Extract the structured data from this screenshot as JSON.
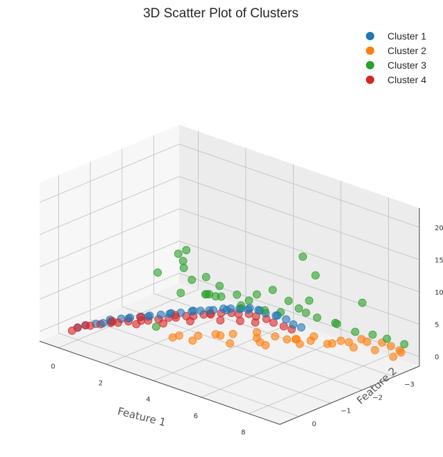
{
  "chart_data": {
    "type": "scatter",
    "projection": "3d",
    "title": "3D Scatter Plot of Clusters",
    "xlabel": "Feature 1",
    "ylabel": "Feature 2",
    "zlabel": "",
    "xlim": [
      -0.8,
      9.3
    ],
    "ylim": [
      -3.8,
      0.6
    ],
    "zlim": [
      -1.5,
      23
    ],
    "xticks": [
      0,
      2,
      4,
      6,
      8
    ],
    "yticks": [
      -3,
      -2,
      -1,
      0
    ],
    "zticks": [
      0,
      5,
      10,
      15,
      20
    ],
    "grid": true,
    "legend_position": "top-right",
    "series": [
      {
        "name": "Cluster 1",
        "color": "#1f77b4",
        "points": [
          [
            0,
            0,
            0.4
          ],
          [
            0.2,
            -0.1,
            0.8
          ],
          [
            0.5,
            -0.2,
            1.2
          ],
          [
            0.8,
            -0.2,
            1.7
          ],
          [
            1.0,
            -0.3,
            2.0
          ],
          [
            1.3,
            -0.4,
            2.6
          ],
          [
            1.6,
            -0.4,
            3.0
          ],
          [
            2.0,
            -0.5,
            3.6
          ],
          [
            2.3,
            -0.5,
            4.0
          ],
          [
            2.7,
            -0.6,
            4.6
          ],
          [
            3.0,
            -0.7,
            5.0
          ],
          [
            3.4,
            -0.7,
            5.6
          ],
          [
            3.8,
            -0.8,
            6.2
          ],
          [
            4.1,
            -0.8,
            6.6
          ],
          [
            4.5,
            -0.9,
            7.0
          ],
          [
            4.8,
            -1.0,
            7.4
          ],
          [
            5.1,
            -1.0,
            7.8
          ],
          [
            5.4,
            -1.1,
            8.0
          ],
          [
            5.7,
            -1.1,
            8.2
          ],
          [
            6.0,
            -1.2,
            8.3
          ],
          [
            6.3,
            -1.2,
            8.2
          ],
          [
            6.6,
            -1.3,
            8.0
          ],
          [
            6.9,
            -1.4,
            7.6
          ],
          [
            7.2,
            -1.4,
            7.2
          ],
          [
            5.6,
            -0.9,
            8.6
          ],
          [
            5.9,
            -1.0,
            8.9
          ],
          [
            6.2,
            -1.1,
            8.7
          ],
          [
            4.6,
            -0.7,
            7.5
          ],
          [
            3.2,
            -0.5,
            5.6
          ],
          [
            2.5,
            -0.4,
            4.6
          ],
          [
            1.8,
            -0.3,
            3.6
          ],
          [
            1.1,
            -0.2,
            2.6
          ],
          [
            6.8,
            -1.2,
            8.5
          ],
          [
            7.4,
            -1.5,
            6.8
          ],
          [
            5.2,
            -0.8,
            8.1
          ],
          [
            4.0,
            -0.6,
            6.8
          ]
        ]
      },
      {
        "name": "Cluster 2",
        "color": "#ff7f0e",
        "points": [
          [
            3.5,
            -1.0,
            0.8
          ],
          [
            4.0,
            -1.5,
            1.2
          ],
          [
            4.8,
            -1.2,
            1.6
          ],
          [
            5.5,
            -1.8,
            1.0
          ],
          [
            6.0,
            -2.5,
            0.4
          ],
          [
            6.5,
            -3.0,
            0.0
          ],
          [
            7.0,
            -3.3,
            0.3
          ],
          [
            7.5,
            -3.5,
            0.6
          ],
          [
            8.0,
            -3.6,
            0.9
          ],
          [
            8.5,
            -3.5,
            1.2
          ],
          [
            9.0,
            -3.4,
            1.4
          ],
          [
            9.0,
            -3.2,
            0.8
          ],
          [
            8.5,
            -3.0,
            1.6
          ],
          [
            8.0,
            -2.7,
            2.0
          ],
          [
            7.5,
            -2.4,
            2.6
          ],
          [
            7.0,
            -2.1,
            3.0
          ],
          [
            6.8,
            -1.8,
            3.6
          ],
          [
            6.3,
            -1.5,
            4.0
          ],
          [
            5.8,
            -1.3,
            4.4
          ],
          [
            5.2,
            -1.0,
            4.0
          ],
          [
            4.6,
            -0.9,
            3.4
          ],
          [
            4.0,
            -0.8,
            2.6
          ],
          [
            3.2,
            -0.8,
            1.6
          ],
          [
            2.8,
            -0.9,
            0.6
          ],
          [
            5.0,
            -2.0,
            0.4
          ],
          [
            5.6,
            -2.4,
            0.8
          ],
          [
            6.2,
            -2.8,
            1.2
          ],
          [
            7.2,
            -2.9,
            1.6
          ],
          [
            7.8,
            -3.1,
            2.2
          ],
          [
            8.8,
            -3.6,
            0.4
          ],
          [
            6.5,
            -2.0,
            2.8
          ],
          [
            5.4,
            -1.6,
            2.4
          ]
        ]
      },
      {
        "name": "Cluster 3",
        "color": "#2ca02c",
        "points": [
          [
            2.5,
            -0.6,
            2.5
          ],
          [
            3.5,
            0.1,
            13.6
          ],
          [
            4.5,
            0.2,
            18.0
          ],
          [
            4.7,
            0.1,
            18.6
          ],
          [
            4.3,
            -0.1,
            16.0
          ],
          [
            4.2,
            -0.2,
            14.6
          ],
          [
            4.4,
            -0.3,
            12.8
          ],
          [
            5.0,
            -0.3,
            14.0
          ],
          [
            5.3,
            -0.5,
            12.6
          ],
          [
            5.5,
            -0.4,
            11.4
          ],
          [
            5.0,
            -0.6,
            10.4
          ],
          [
            4.6,
            -0.7,
            10.0
          ],
          [
            4.3,
            -0.8,
            9.4
          ],
          [
            5.8,
            -0.8,
            9.6
          ],
          [
            6.2,
            -1.0,
            11.4
          ],
          [
            6.6,
            -1.2,
            12.2
          ],
          [
            7.0,
            -1.4,
            10.6
          ],
          [
            7.3,
            -1.5,
            9.6
          ],
          [
            6.8,
            -1.3,
            8.8
          ],
          [
            6.4,
            -1.1,
            9.0
          ],
          [
            7.8,
            -1.7,
            8.4
          ],
          [
            8.3,
            -1.9,
            7.8
          ],
          [
            8.6,
            -2.3,
            6.0
          ],
          [
            8.8,
            -2.7,
            5.0
          ],
          [
            9.0,
            -3.0,
            4.0
          ],
          [
            9.2,
            -3.4,
            2.6
          ],
          [
            8.8,
            -0.5,
            21.6
          ],
          [
            9.2,
            -0.6,
            19.0
          ],
          [
            9.3,
            -2.0,
            12.0
          ],
          [
            7.6,
            -1.6,
            11.0
          ],
          [
            5.9,
            -0.6,
            11.8
          ],
          [
            6.0,
            -0.9,
            10.4
          ],
          [
            4.9,
            -0.4,
            11.0
          ],
          [
            7.2,
            -1.8,
            8.2
          ],
          [
            8.1,
            -2.1,
            7.0
          ],
          [
            3.8,
            -0.4,
            9.8
          ]
        ]
      },
      {
        "name": "Cluster 4",
        "color": "#d62728",
        "points": [
          [
            -0.1,
            0.1,
            0.0
          ],
          [
            0.0,
            0.0,
            0.4
          ],
          [
            0.2,
            -0.1,
            0.8
          ],
          [
            0.4,
            -0.1,
            1.0
          ],
          [
            0.7,
            -0.2,
            1.4
          ],
          [
            1.0,
            -0.3,
            1.8
          ],
          [
            1.3,
            -0.3,
            2.2
          ],
          [
            1.6,
            -0.4,
            2.6
          ],
          [
            2.0,
            -0.5,
            3.0
          ],
          [
            2.3,
            -0.5,
            3.4
          ],
          [
            2.6,
            -0.6,
            3.8
          ],
          [
            2.9,
            -0.7,
            4.2
          ],
          [
            3.2,
            -0.7,
            4.6
          ],
          [
            3.5,
            -0.8,
            5.0
          ],
          [
            3.8,
            -0.8,
            5.4
          ],
          [
            4.1,
            -0.9,
            5.8
          ],
          [
            4.4,
            -0.9,
            6.2
          ],
          [
            4.7,
            -1.0,
            6.6
          ],
          [
            5.0,
            -1.1,
            6.8
          ],
          [
            5.3,
            -1.1,
            7.0
          ],
          [
            5.6,
            -1.2,
            7.2
          ],
          [
            5.9,
            -1.2,
            7.2
          ],
          [
            6.2,
            -1.3,
            7.0
          ],
          [
            6.5,
            -1.3,
            6.8
          ],
          [
            6.8,
            -1.4,
            6.4
          ],
          [
            7.0,
            -1.5,
            6.0
          ],
          [
            1.8,
            -0.5,
            2.2
          ],
          [
            2.8,
            -0.6,
            3.4
          ],
          [
            3.8,
            -0.7,
            4.8
          ],
          [
            4.8,
            -0.9,
            5.8
          ],
          [
            5.5,
            -1.0,
            6.4
          ],
          [
            6.0,
            -1.1,
            6.6
          ],
          [
            2.1,
            -0.4,
            3.9
          ],
          [
            3.3,
            -0.6,
            5.3
          ],
          [
            4.5,
            -0.8,
            6.7
          ],
          [
            1.2,
            -0.2,
            2.5
          ]
        ]
      }
    ]
  }
}
